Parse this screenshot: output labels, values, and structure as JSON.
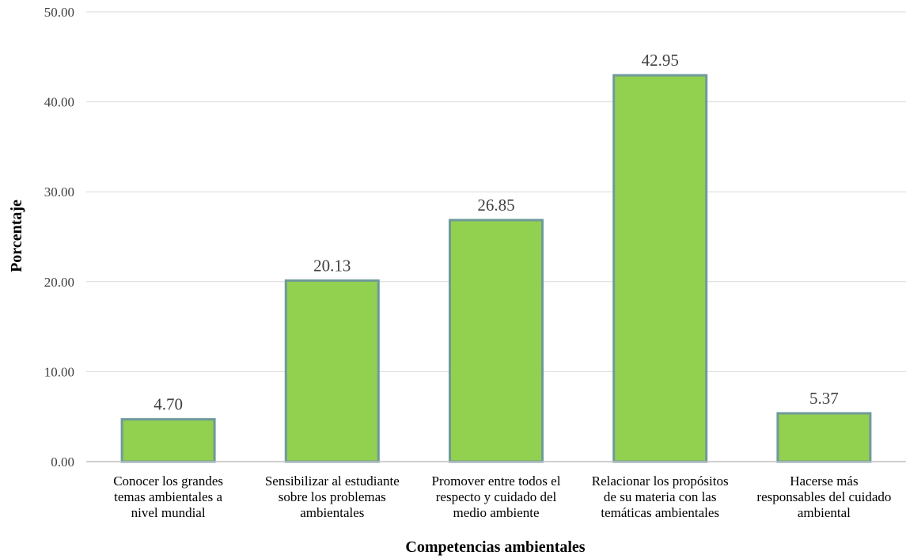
{
  "chart_data": {
    "type": "bar",
    "categories": [
      [
        "Conocer los grandes",
        "temas ambientales a",
        "nivel mundial"
      ],
      [
        "Sensibilizar al estudiante",
        "sobre los problemas",
        "ambientales"
      ],
      [
        "Promover entre todos el",
        "respecto y cuidado del",
        "medio ambiente"
      ],
      [
        "Relacionar los propósitos",
        "de su materia con las",
        "temáticas ambientales"
      ],
      [
        "Hacerse más",
        "responsables del cuidado",
        "ambiental"
      ]
    ],
    "values": [
      4.7,
      20.13,
      26.85,
      42.95,
      5.37
    ],
    "value_labels": [
      "4.70",
      "20.13",
      "26.85",
      "42.95",
      "5.37"
    ],
    "yticks": [
      "0.00",
      "10.00",
      "20.00",
      "30.00",
      "40.00",
      "50.00"
    ],
    "ylim": [
      0,
      50
    ],
    "xlabel": "Competencias ambientales",
    "ylabel": "Porcentaje",
    "grid": true,
    "legend": "none",
    "colors": {
      "bar_fill": "#92d050",
      "bar_edge": "#6f9a9a",
      "grid": "#d9d9d9",
      "axis": "#bfbfbf"
    }
  }
}
